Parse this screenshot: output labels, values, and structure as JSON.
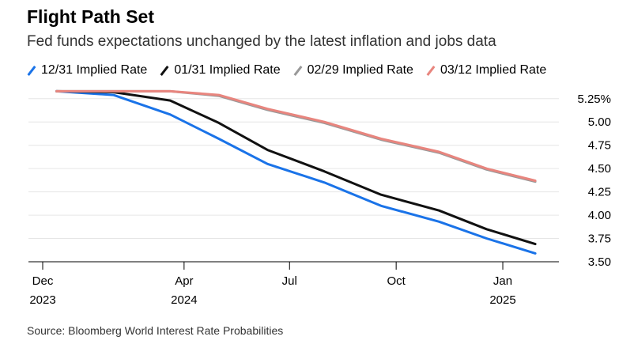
{
  "header": {
    "title": "Flight Path Set",
    "subtitle": "Fed funds expectations unchanged by the latest inflation and jobs data"
  },
  "source": "Source: Bloomberg World Interest Rate Probabilities",
  "colors": {
    "blue": "#1a73e8",
    "black": "#111111",
    "gray": "#999999",
    "red": "#e8857e",
    "grid": "#e6e6e6",
    "axis": "#000000"
  },
  "chart_data": {
    "type": "line",
    "title": "Flight Path Set",
    "subtitle": "Fed funds expectations unchanged by the latest inflation and jobs data",
    "xlabel": "",
    "ylabel": "",
    "y_axis_side": "right",
    "ylim": [
      3.5,
      5.35
    ],
    "yticks": [
      {
        "value": 5.25,
        "label": "5.25%"
      },
      {
        "value": 5.0,
        "label": "5.00"
      },
      {
        "value": 4.75,
        "label": "4.75"
      },
      {
        "value": 4.5,
        "label": "4.50"
      },
      {
        "value": 4.25,
        "label": "4.25"
      },
      {
        "value": 4.0,
        "label": "4.00"
      },
      {
        "value": 3.75,
        "label": "3.75"
      },
      {
        "value": 3.5,
        "label": "3.50"
      }
    ],
    "xlim": [
      "2023-12-01",
      "2025-02-15"
    ],
    "xticks": [
      {
        "date": "2023-12-01",
        "label": "Dec",
        "year": "2023"
      },
      {
        "date": "2024-04-01",
        "label": "Apr",
        "year": "2024"
      },
      {
        "date": "2024-07-01",
        "label": "Jul",
        "year": ""
      },
      {
        "date": "2024-10-01",
        "label": "Oct",
        "year": ""
      },
      {
        "date": "2025-01-01",
        "label": "Jan",
        "year": "2025"
      }
    ],
    "grid": true,
    "legend_position": "top",
    "x": [
      "2023-12-13",
      "2024-01-31",
      "2024-03-20",
      "2024-05-01",
      "2024-06-12",
      "2024-07-31",
      "2024-09-18",
      "2024-11-07",
      "2024-12-18",
      "2025-01-29"
    ],
    "series": [
      {
        "name": "12/31 Implied Rate",
        "color": "#1a73e8",
        "values": [
          5.33,
          5.29,
          5.08,
          4.82,
          4.55,
          4.35,
          4.1,
          3.93,
          3.75,
          3.59
        ]
      },
      {
        "name": "01/31 Implied Rate",
        "color": "#111111",
        "values": [
          5.33,
          5.32,
          5.23,
          4.99,
          4.7,
          4.47,
          4.22,
          4.05,
          3.85,
          3.69
        ]
      },
      {
        "name": "02/29 Implied Rate",
        "color": "#999999",
        "values": [
          5.33,
          5.33,
          5.33,
          5.28,
          5.13,
          4.99,
          4.81,
          4.67,
          4.49,
          4.36
        ]
      },
      {
        "name": "03/12 Implied Rate",
        "color": "#e8857e",
        "values": [
          5.33,
          5.33,
          5.33,
          5.29,
          5.14,
          5.0,
          4.82,
          4.68,
          4.5,
          4.37
        ]
      }
    ]
  }
}
